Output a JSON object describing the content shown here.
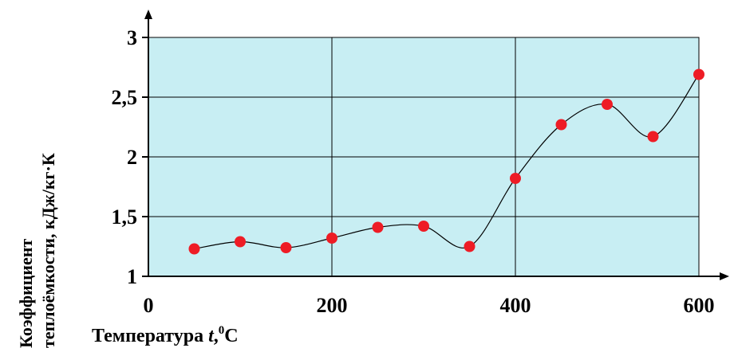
{
  "chart_data": {
    "type": "scatter",
    "title": "",
    "xlabel": {
      "prefix": "Температура ",
      "var": "t",
      "sep": ",",
      "sup": "0",
      "unit": "C"
    },
    "ylabel_line1": "Коэффициент",
    "ylabel_line2": "теплоёмкости, кДж/кг·К",
    "xlim": [
      0,
      600
    ],
    "ylim": [
      1,
      3
    ],
    "x_ticks": [
      "0",
      "200",
      "400",
      "600"
    ],
    "y_ticks": [
      "1",
      "1,5",
      "2",
      "2,5",
      "3"
    ],
    "grid": true,
    "series": [
      {
        "x": [
          50,
          100,
          150,
          200,
          250,
          300,
          350,
          400,
          450,
          500,
          550,
          600
        ],
        "y": [
          1.23,
          1.29,
          1.24,
          1.32,
          1.41,
          1.42,
          1.25,
          1.82,
          2.27,
          2.44,
          2.17,
          2.69
        ]
      }
    ],
    "colors": {
      "plot_bg": "#c8eef3",
      "point": "#ee1c25",
      "curve": "#000000",
      "grid": "#000000"
    }
  }
}
